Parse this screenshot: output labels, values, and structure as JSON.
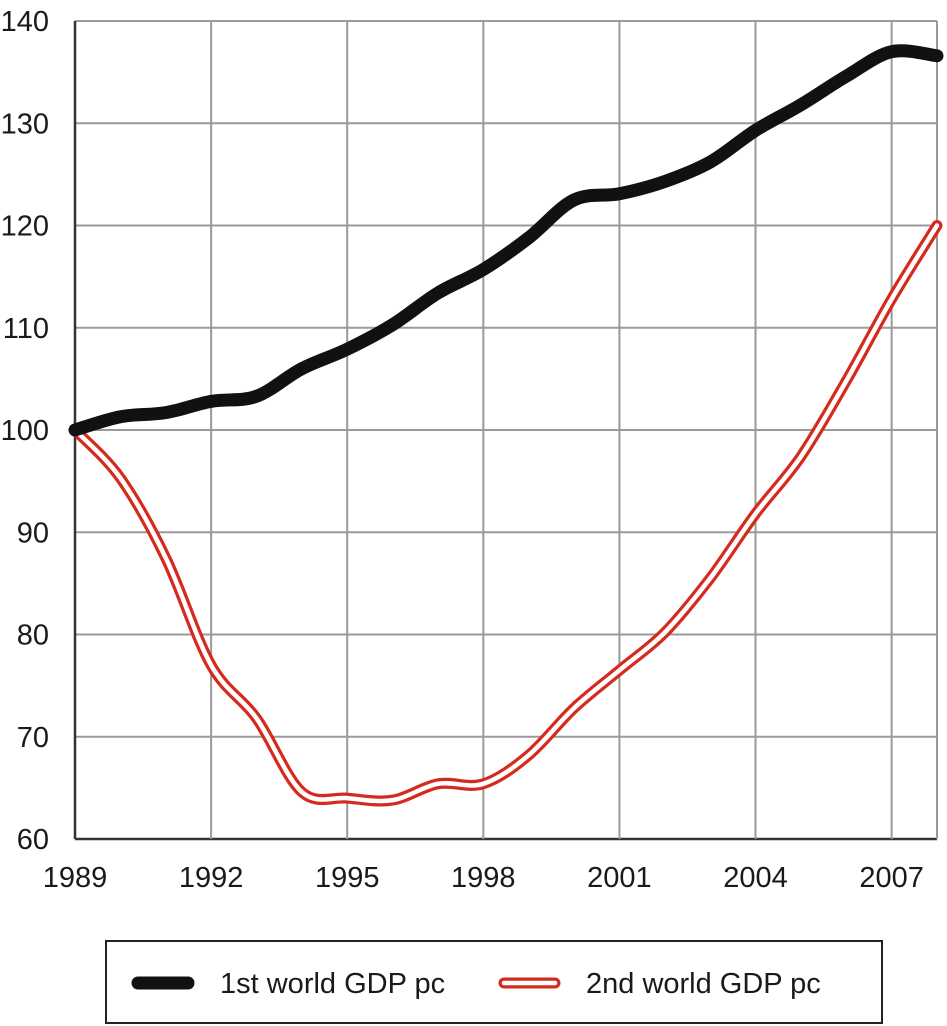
{
  "chart_data": {
    "type": "line",
    "title": "",
    "xlabel": "",
    "ylabel": "",
    "xlim": [
      1989,
      2008
    ],
    "ylim": [
      60,
      140
    ],
    "xticks": [
      1989,
      1992,
      1995,
      1998,
      2001,
      2004,
      2007
    ],
    "yticks": [
      60,
      70,
      80,
      90,
      100,
      110,
      120,
      130,
      140
    ],
    "xtick_labels": [
      "1989",
      "1992",
      "1995",
      "1998",
      "2001",
      "2004",
      "2007"
    ],
    "ytick_labels": [
      "60",
      "70",
      "80",
      "90",
      "100",
      "110",
      "120",
      "130",
      "140"
    ],
    "grid": true,
    "legend_position": "bottom",
    "x": [
      1989,
      1990,
      1991,
      1992,
      1993,
      1994,
      1995,
      1996,
      1997,
      1998,
      1999,
      2000,
      2001,
      2002,
      2003,
      2004,
      2005,
      2006,
      2007,
      2008
    ],
    "series": [
      {
        "name": "1st world GDP pc",
        "color": "#111111",
        "style": "solid",
        "values": [
          100,
          101.3,
          101.7,
          102.8,
          103.3,
          106,
          107.9,
          110.3,
          113.4,
          115.7,
          118.8,
          122.5,
          123.1,
          124.3,
          126.2,
          129.3,
          131.8,
          134.6,
          137,
          136.6
        ]
      },
      {
        "name": "2nd world GDP pc",
        "color": "#d52b1e",
        "style": "double",
        "values": [
          100,
          95.3,
          87.5,
          77,
          71.8,
          64.6,
          64,
          63.8,
          65.4,
          65.4,
          68.2,
          72.8,
          76.5,
          80.2,
          85.5,
          91.8,
          97.4,
          104.8,
          112.8,
          120
        ]
      }
    ]
  }
}
